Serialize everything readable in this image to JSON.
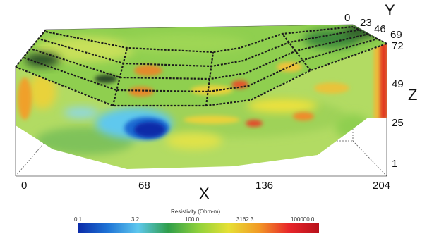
{
  "chart_data": {
    "type": "heatmap",
    "view": "3d-block",
    "axes": {
      "x": {
        "label": "X",
        "ticks": [
          "0",
          "68",
          "136",
          "204"
        ],
        "range": [
          0,
          204
        ]
      },
      "y": {
        "label": "Y",
        "ticks": [
          "0",
          "23",
          "46",
          "69"
        ],
        "range": [
          0,
          69
        ]
      },
      "z": {
        "label": "Z",
        "ticks": [
          "72",
          "49",
          "25",
          "1"
        ],
        "range": [
          1,
          72
        ]
      }
    },
    "colorbar": {
      "title": "Resistivity (Ohm-m)",
      "ticks": [
        "0.1",
        "3.2",
        "100.0",
        "3162.3",
        "100000.0"
      ],
      "range": [
        0.1,
        100000.0
      ],
      "scale": "log",
      "colors": [
        "#0a2aa8",
        "#1f74d6",
        "#5ec8ee",
        "#2f9e4a",
        "#8fd13c",
        "#e6e034",
        "#f29a26",
        "#e8262a",
        "#b8101b"
      ]
    },
    "surface_colors": {
      "low": "#1b3fc4",
      "mid": "#7cc95a",
      "background": "#b2db63",
      "high": "#e23a22",
      "track": "#1c1c1c"
    }
  }
}
